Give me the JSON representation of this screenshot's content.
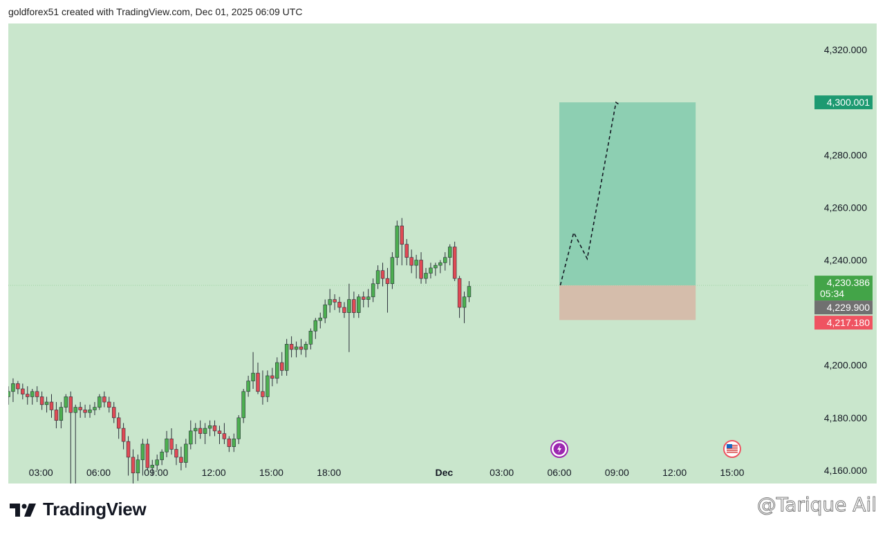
{
  "header": {
    "caption": "goldforex51 created with TradingView.com, Dec 01, 2025 06:09 UTC"
  },
  "footer": {
    "logo_text": "TradingView",
    "watermark": "@Tarique Ail"
  },
  "colors": {
    "background": "#c9e6cc",
    "bullish": "#4caf50",
    "bearish": "#e04a55",
    "profit_zone": "#8dcfb2",
    "loss_zone": "#d5bdab",
    "target_label": "#1d9a71",
    "last_price_label": "#43a448",
    "mid_label": "#707070",
    "stop_label": "#ef5361",
    "event_icon": "#9c27b0"
  },
  "chart_data": {
    "type": "candlestick",
    "y_axis": {
      "ticks": [
        "4,160.000",
        "4,180.000",
        "4,200.000",
        "4,240.000",
        "4,260.000",
        "4,280.000",
        "4,320.000"
      ],
      "tick_values": [
        4160,
        4180,
        4200,
        4240,
        4260,
        4280,
        4320
      ],
      "range": [
        4155,
        4330
      ]
    },
    "x_axis": {
      "ticks": [
        "03:00",
        "06:00",
        "09:00",
        "12:00",
        "15:00",
        "18:00",
        "Dec",
        "03:00",
        "06:00",
        "09:00",
        "12:00",
        "15:00"
      ],
      "bold_tick": "Dec",
      "tick_hours": [
        3,
        6,
        9,
        12,
        15,
        18,
        24,
        27,
        30,
        33,
        36,
        39
      ],
      "range_hours": [
        1.3,
        43.0
      ]
    },
    "candle_interval_minutes": 15,
    "first_candle_hour": 1.3,
    "candles": [
      [
        4188,
        4192,
        4185,
        4190
      ],
      [
        4190,
        4195,
        4186,
        4193
      ],
      [
        4193,
        4194,
        4189,
        4191
      ],
      [
        4191,
        4193,
        4187,
        4189
      ],
      [
        4189,
        4192,
        4185,
        4188
      ],
      [
        4188,
        4191,
        4185,
        4190
      ],
      [
        4190,
        4192,
        4186,
        4188
      ],
      [
        4188,
        4190,
        4183,
        4185
      ],
      [
        4185,
        4188,
        4182,
        4186
      ],
      [
        4186,
        4189,
        4180,
        4183
      ],
      [
        4183,
        4186,
        4176,
        4179
      ],
      [
        4179,
        4186,
        4176,
        4184
      ],
      [
        4184,
        4189,
        4182,
        4188
      ],
      [
        4188,
        4190,
        4155,
        4182
      ],
      [
        4182,
        4185,
        4155,
        4184
      ],
      [
        4184,
        4186,
        4180,
        4183
      ],
      [
        4183,
        4185,
        4180,
        4182
      ],
      [
        4182,
        4185,
        4180,
        4183
      ],
      [
        4183,
        4186,
        4181,
        4184
      ],
      [
        4184,
        4189,
        4183,
        4188
      ],
      [
        4188,
        4190,
        4184,
        4186
      ],
      [
        4186,
        4188,
        4182,
        4184
      ],
      [
        4184,
        4186,
        4178,
        4180
      ],
      [
        4180,
        4182,
        4172,
        4176
      ],
      [
        4176,
        4178,
        4168,
        4171
      ],
      [
        4171,
        4173,
        4158,
        4165
      ],
      [
        4165,
        4168,
        4155,
        4159
      ],
      [
        4159,
        4166,
        4156,
        4164
      ],
      [
        4164,
        4172,
        4158,
        4170
      ],
      [
        4170,
        4172,
        4160,
        4161
      ],
      [
        4161,
        4164,
        4158,
        4162
      ],
      [
        4162,
        4166,
        4160,
        4164
      ],
      [
        4164,
        4168,
        4162,
        4167
      ],
      [
        4167,
        4175,
        4165,
        4172
      ],
      [
        4172,
        4176,
        4166,
        4168
      ],
      [
        4168,
        4170,
        4162,
        4165
      ],
      [
        4165,
        4169,
        4160,
        4163
      ],
      [
        4163,
        4172,
        4161,
        4170
      ],
      [
        4170,
        4179,
        4168,
        4175
      ],
      [
        4175,
        4178,
        4170,
        4176
      ],
      [
        4176,
        4179,
        4172,
        4174
      ],
      [
        4174,
        4178,
        4170,
        4176
      ],
      [
        4176,
        4179,
        4173,
        4177
      ],
      [
        4177,
        4179,
        4173,
        4175
      ],
      [
        4175,
        4177,
        4170,
        4174
      ],
      [
        4174,
        4178,
        4170,
        4172
      ],
      [
        4172,
        4173,
        4167,
        4169
      ],
      [
        4169,
        4174,
        4167,
        4172
      ],
      [
        4172,
        4181,
        4170,
        4180
      ],
      [
        4180,
        4191,
        4178,
        4190
      ],
      [
        4190,
        4196,
        4188,
        4194
      ],
      [
        4194,
        4205,
        4191,
        4197
      ],
      [
        4197,
        4201,
        4189,
        4190
      ],
      [
        4190,
        4198,
        4185,
        4188
      ],
      [
        4188,
        4198,
        4186,
        4196
      ],
      [
        4196,
        4199,
        4192,
        4195
      ],
      [
        4195,
        4203,
        4193,
        4201
      ],
      [
        4201,
        4205,
        4196,
        4198
      ],
      [
        4198,
        4210,
        4196,
        4208
      ],
      [
        4208,
        4211,
        4203,
        4206
      ],
      [
        4206,
        4209,
        4203,
        4207
      ],
      [
        4207,
        4210,
        4204,
        4206
      ],
      [
        4206,
        4209,
        4203,
        4208
      ],
      [
        4208,
        4214,
        4206,
        4213
      ],
      [
        4213,
        4218,
        4210,
        4217
      ],
      [
        4217,
        4220,
        4214,
        4218
      ],
      [
        4218,
        4225,
        4216,
        4223
      ],
      [
        4223,
        4229,
        4220,
        4225
      ],
      [
        4225,
        4227,
        4221,
        4224
      ],
      [
        4224,
        4226,
        4220,
        4222
      ],
      [
        4222,
        4224,
        4218,
        4220
      ],
      [
        4220,
        4231,
        4205,
        4225
      ],
      [
        4225,
        4228,
        4218,
        4220
      ],
      [
        4220,
        4227,
        4218,
        4226
      ],
      [
        4226,
        4228,
        4222,
        4225
      ],
      [
        4225,
        4229,
        4222,
        4226
      ],
      [
        4226,
        4233,
        4224,
        4231
      ],
      [
        4231,
        4238,
        4229,
        4236
      ],
      [
        4236,
        4239,
        4230,
        4233
      ],
      [
        4233,
        4237,
        4220,
        4231
      ],
      [
        4231,
        4243,
        4229,
        4241
      ],
      [
        4241,
        4255,
        4238,
        4253
      ],
      [
        4253,
        4256,
        4238,
        4246
      ],
      [
        4246,
        4248,
        4238,
        4241
      ],
      [
        4241,
        4244,
        4235,
        4238
      ],
      [
        4238,
        4242,
        4233,
        4240
      ],
      [
        4240,
        4243,
        4231,
        4233
      ],
      [
        4233,
        4237,
        4231,
        4235
      ],
      [
        4235,
        4239,
        4233,
        4237
      ],
      [
        4237,
        4239,
        4234,
        4238
      ],
      [
        4238,
        4240,
        4235,
        4239
      ],
      [
        4239,
        4243,
        4236,
        4241
      ],
      [
        4241,
        4246,
        4238,
        4245
      ],
      [
        4245,
        4247,
        4232,
        4233
      ],
      [
        4233,
        4234,
        4218,
        4222
      ],
      [
        4222,
        4228,
        4216,
        4226
      ],
      [
        4226,
        4232,
        4224,
        4230
      ]
    ],
    "price_labels": {
      "target": "4,300.001",
      "last_price": "4,230.386",
      "countdown": "05:34",
      "mid": "4,229.900",
      "stop": "4,217.180"
    },
    "levels": {
      "target": 4300.001,
      "last_price": 4230.386,
      "mid": 4229.9,
      "stop": 4217.18
    },
    "position": {
      "type": "long",
      "entry": 4230.386,
      "target": 4300.001,
      "stop": 4217.18,
      "start_hour": 30.0,
      "end_hour": 37.1
    },
    "projection_path": [
      [
        30.05,
        4230.4
      ],
      [
        30.75,
        4250.5
      ],
      [
        31.45,
        4240.5
      ],
      [
        32.95,
        4300.0
      ],
      [
        33.15,
        4299.0
      ]
    ],
    "events": [
      {
        "icon": "lightning-event-icon",
        "hour": 30.0
      },
      {
        "icon": "us-flag-icon",
        "hour": 39.0
      }
    ]
  }
}
